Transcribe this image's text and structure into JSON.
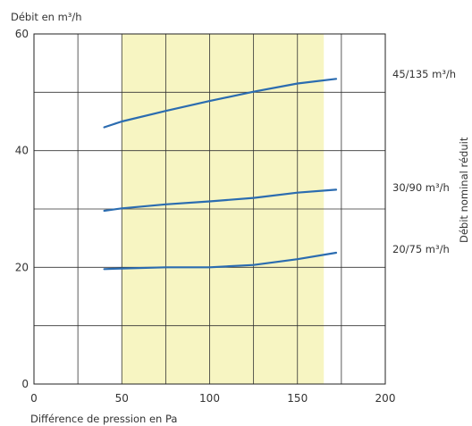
{
  "chart_data": {
    "type": "line",
    "ylabel": "Débit en m³/h",
    "xlabel": "Différence de pression en Pa",
    "right_axis_label": "Débit nominal réduit",
    "xlim": [
      0,
      200
    ],
    "ylim": [
      0,
      60
    ],
    "x_ticks": [
      0,
      50,
      100,
      150,
      200
    ],
    "y_ticks": [
      0,
      20,
      40,
      60
    ],
    "x_gridlines": [
      0,
      25,
      50,
      75,
      100,
      125,
      150,
      175,
      200
    ],
    "y_gridlines": [
      0,
      10,
      20,
      30,
      40,
      50,
      60
    ],
    "grid": true,
    "highlight_range": {
      "x": [
        50,
        165
      ],
      "color": "#f7f5c2"
    },
    "line_color": "#2b6cb0",
    "series": [
      {
        "name": "45/135 m³/h",
        "x": [
          40,
          50,
          75,
          100,
          125,
          150,
          172
        ],
        "y": [
          44,
          45,
          46.8,
          48.5,
          50.1,
          51.5,
          52.3
        ]
      },
      {
        "name": "30/90 m³/h",
        "x": [
          40,
          50,
          75,
          100,
          125,
          150,
          172
        ],
        "y": [
          29.7,
          30.1,
          30.8,
          31.3,
          31.9,
          32.8,
          33.3
        ]
      },
      {
        "name": "20/75 m³/h",
        "x": [
          40,
          50,
          75,
          100,
          125,
          150,
          172
        ],
        "y": [
          19.7,
          19.8,
          20,
          20,
          20.4,
          21.4,
          22.5
        ]
      }
    ]
  }
}
